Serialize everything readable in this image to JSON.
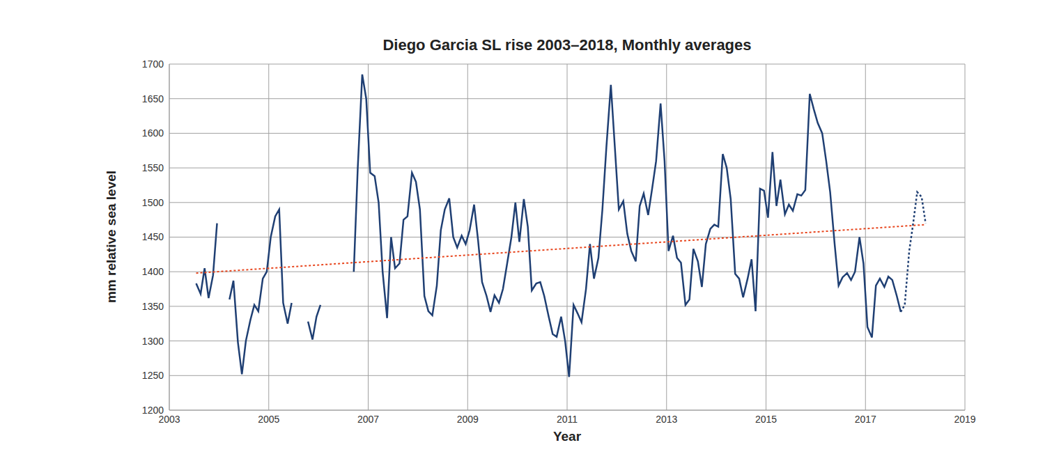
{
  "chart_data": {
    "type": "line",
    "title": "Diego Garcia SL rise 2003–2018, Monthly averages",
    "x_label": "Year",
    "y_label": "mm relative sea level",
    "xlim": [
      2003,
      2019
    ],
    "xticks": [
      2003,
      2005,
      2007,
      2009,
      2011,
      2013,
      2015,
      2017,
      2019
    ],
    "ylim": [
      1200,
      1700
    ],
    "yticks": [
      1200,
      1250,
      1300,
      1350,
      1400,
      1450,
      1500,
      1550,
      1600,
      1650,
      1700
    ],
    "grid": true,
    "series": [
      {
        "color": "#1f3f73",
        "line_style": "solid",
        "x": [
          2003.54,
          2003.63,
          2003.71,
          2003.79,
          2003.88,
          2003.96,
          2004.04,
          2004.13,
          2004.21,
          2004.29,
          2004.38,
          2004.46,
          2004.54,
          2004.63,
          2004.71,
          2004.79,
          2004.88,
          2004.96,
          2005.04,
          2005.13,
          2005.21,
          2005.29,
          2005.38,
          2005.46,
          2005.54,
          2005.63,
          2005.71,
          2005.79,
          2005.88,
          2005.96,
          2006.04,
          2006.13,
          2006.71,
          2006.79,
          2006.88,
          2006.96,
          2007.04,
          2007.13,
          2007.21,
          2007.29,
          2007.38,
          2007.46,
          2007.54,
          2007.63,
          2007.71,
          2007.79,
          2007.88,
          2007.96,
          2008.04,
          2008.13,
          2008.21,
          2008.29,
          2008.38,
          2008.46,
          2008.54,
          2008.63,
          2008.71,
          2008.79,
          2008.88,
          2008.96,
          2009.04,
          2009.13,
          2009.21,
          2009.29,
          2009.38,
          2009.46,
          2009.54,
          2009.63,
          2009.71,
          2009.79,
          2009.88,
          2009.96,
          2010.04,
          2010.13,
          2010.21,
          2010.29,
          2010.38,
          2010.46,
          2010.54,
          2010.63,
          2010.71,
          2010.79,
          2010.88,
          2010.96,
          2011.04,
          2011.13,
          2011.21,
          2011.29,
          2011.38,
          2011.46,
          2011.54,
          2011.63,
          2011.71,
          2011.79,
          2011.88,
          2011.96,
          2012.04,
          2012.13,
          2012.21,
          2012.29,
          2012.38,
          2012.46,
          2012.54,
          2012.63,
          2012.71,
          2012.79,
          2012.88,
          2012.96,
          2013.04,
          2013.13,
          2013.21,
          2013.29,
          2013.38,
          2013.46,
          2013.54,
          2013.63,
          2013.71,
          2013.79,
          2013.88,
          2013.96,
          2014.04,
          2014.13,
          2014.21,
          2014.29,
          2014.38,
          2014.46,
          2014.54,
          2014.63,
          2014.71,
          2014.79,
          2014.88,
          2014.96,
          2015.04,
          2015.13,
          2015.21,
          2015.29,
          2015.38,
          2015.46,
          2015.54,
          2015.63,
          2015.71,
          2015.79,
          2015.88,
          2015.96,
          2016.04,
          2016.13,
          2016.21,
          2016.29,
          2016.38,
          2016.46,
          2016.54,
          2016.63,
          2016.71,
          2016.79,
          2016.88,
          2016.96,
          2017.04,
          2017.13,
          2017.21,
          2017.29,
          2017.38,
          2017.46,
          2017.54,
          2017.63,
          2017.71
        ],
        "values": [
          1383,
          1368,
          1405,
          1362,
          1395,
          1470,
          null,
          null,
          1360,
          1387,
          1298,
          1252,
          1300,
          1330,
          1352,
          1343,
          1390,
          1400,
          1450,
          1480,
          1490,
          1355,
          1325,
          1355,
          null,
          null,
          null,
          1328,
          1302,
          1335,
          1352,
          null,
          1400,
          1550,
          1685,
          1650,
          1543,
          1538,
          1500,
          1400,
          1333,
          1450,
          1405,
          1412,
          1475,
          1480,
          1543,
          1530,
          1490,
          1365,
          1343,
          1337,
          1380,
          1460,
          1490,
          1506,
          1450,
          1435,
          1452,
          1440,
          1460,
          1497,
          1445,
          1385,
          1365,
          1342,
          1366,
          1355,
          1375,
          1410,
          1450,
          1500,
          1443,
          1505,
          1465,
          1373,
          1383,
          1385,
          1365,
          1335,
          1310,
          1306,
          1335,
          1300,
          1248,
          1352,
          1340,
          1327,
          1375,
          1440,
          1390,
          1420,
          1490,
          1580,
          1670,
          1580,
          1490,
          1502,
          1455,
          1430,
          1415,
          1495,
          1513,
          1482,
          1520,
          1560,
          1643,
          1560,
          1430,
          1452,
          1420,
          1413,
          1352,
          1360,
          1433,
          1415,
          1378,
          1440,
          1462,
          1468,
          1465,
          1570,
          1550,
          1505,
          1397,
          1390,
          1363,
          1390,
          1418,
          1343,
          1520,
          1517,
          1478,
          1573,
          1495,
          1533,
          1483,
          1497,
          1488,
          1512,
          1510,
          1518,
          1657,
          1635,
          1615,
          1600,
          1560,
          1515,
          1440,
          1380,
          1392,
          1398,
          1388,
          1400,
          1450,
          1412,
          1320,
          1305,
          1380,
          1390,
          1378,
          1393,
          1388,
          1365,
          1342
        ]
      },
      {
        "color": "#1f3f73",
        "line_style": "dotted",
        "x": [
          2017.71,
          2017.79,
          2017.88,
          2017.96,
          2018.04,
          2018.13,
          2018.21
        ],
        "values": [
          1342,
          1352,
          1430,
          1470,
          1515,
          1508,
          1470
        ]
      },
      {
        "color": "#e8461e",
        "line_style": "dotted",
        "x": [
          2003.54,
          2018.21
        ],
        "values": [
          1398,
          1468
        ]
      }
    ]
  }
}
